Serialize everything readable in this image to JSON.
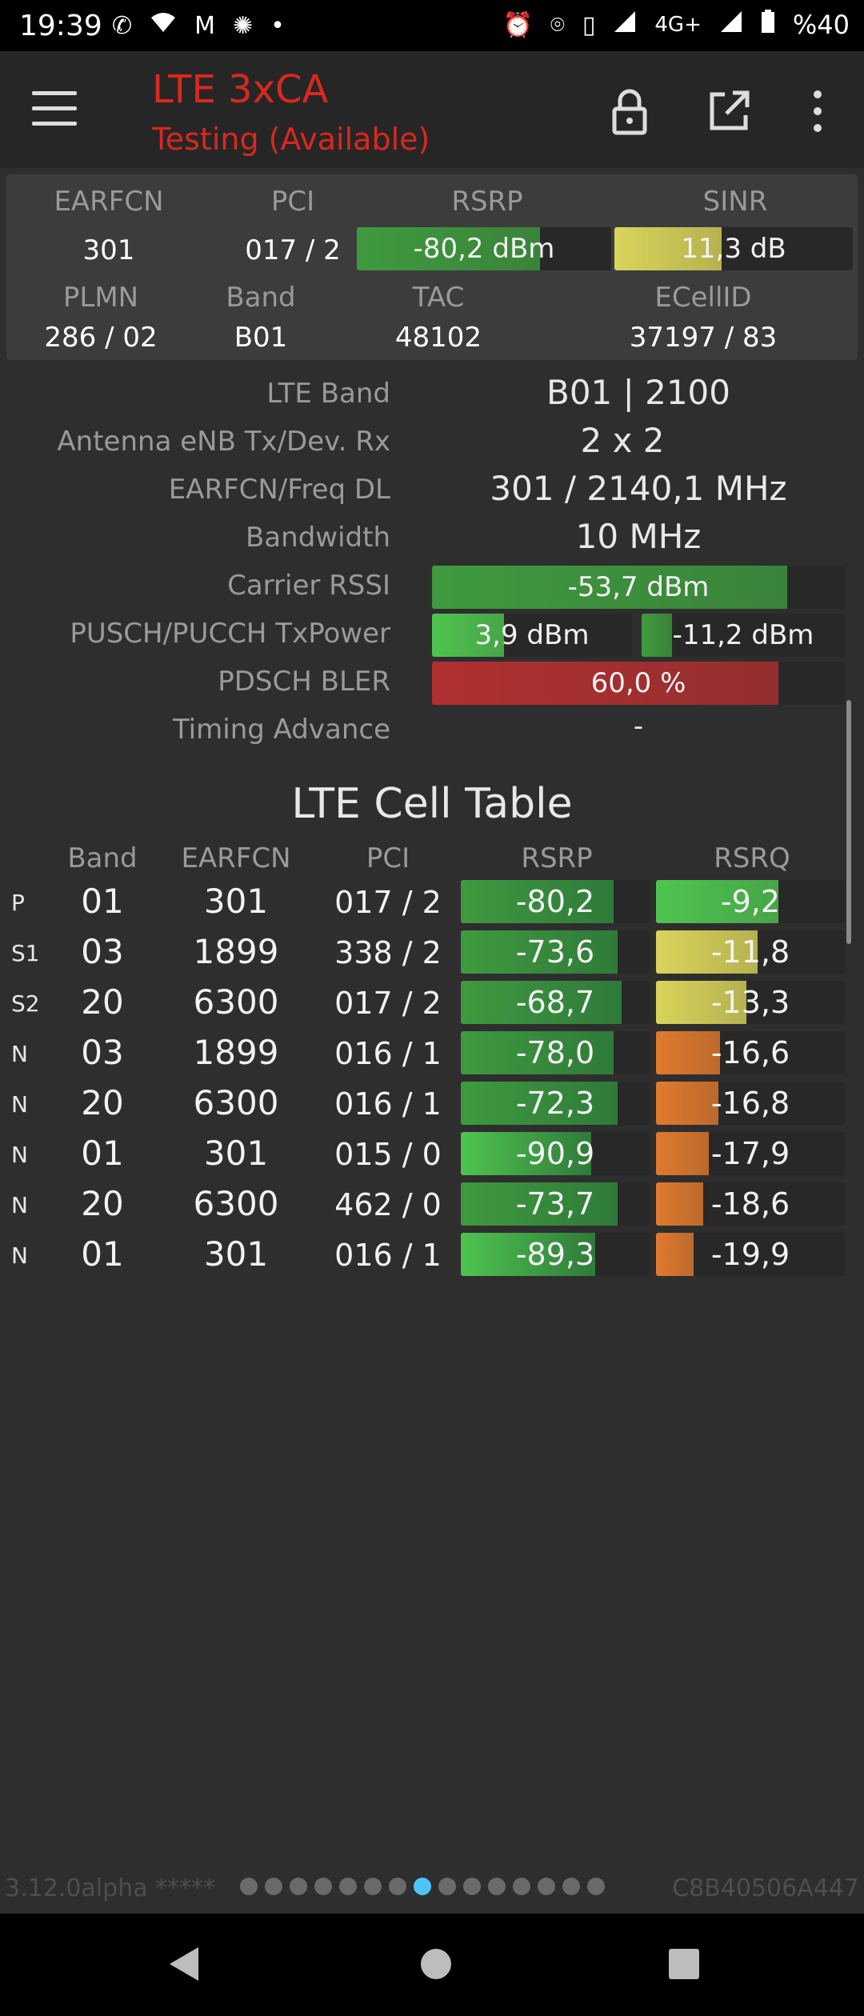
{
  "status_bar": {
    "time": "19:39",
    "left_icons": [
      "whatsapp-icon",
      "wifi-icon",
      "gmail-icon",
      "app-icon",
      "dot-icon"
    ],
    "right_icons": [
      "alarm-icon",
      "location-icon",
      "vibrate-icon",
      "signal-icon"
    ],
    "network": "4G+",
    "battery": "%40"
  },
  "app_bar": {
    "title": "LTE 3xCA",
    "subtitle": "Testing (Available)",
    "accent_color": "#d9281f"
  },
  "summary": {
    "headers1": [
      "EARFCN",
      "PCI",
      "RSRP",
      "SINR"
    ],
    "earfcn": "301",
    "pci": "017 / 2",
    "rsrp": {
      "text": "-80,2 dBm",
      "fill": 0.72,
      "color": "#3f9a3f"
    },
    "sinr": {
      "text": "11,3 dB",
      "fill": 0.45,
      "color": "#d9d45a"
    },
    "headers2": [
      "PLMN",
      "Band",
      "TAC",
      "ECellID"
    ],
    "plmn": "286 / 02",
    "band": "B01",
    "tac": "48102",
    "ecellid": "37197 / 83"
  },
  "details": {
    "lte_band_label": "LTE Band",
    "lte_band_value": "B01 | 2100",
    "antenna_label": "Antenna eNB Tx/Dev. Rx",
    "antenna_value": "2 x 2",
    "earfcn_freq_label": "EARFCN/Freq DL",
    "earfcn_freq_value": "301 / 2140,1 MHz",
    "bandwidth_label": "Bandwidth",
    "bandwidth_value": "10 MHz",
    "rssi_label": "Carrier RSSI",
    "rssi": {
      "text": "-53,7 dBm",
      "fill": 0.86,
      "color": "#3f9a3f"
    },
    "txpower_label": "PUSCH/PUCCH TxPower",
    "pusch": {
      "text": "3,9 dBm",
      "fill": 0.36,
      "color": "#4fc44f"
    },
    "pucch": {
      "text": "-11,2 dBm",
      "fill": 0.15,
      "color": "#3f9a3f"
    },
    "bler_label": "PDSCH BLER",
    "bler": {
      "text": "60,0 %",
      "fill": 0.84,
      "color": "#b03030"
    },
    "timing_label": "Timing Advance",
    "timing_value": "-"
  },
  "cell_table": {
    "title": "LTE Cell Table",
    "headers": [
      "Band",
      "EARFCN",
      "PCI",
      "RSRP",
      "RSRQ"
    ],
    "rows": [
      {
        "tag": "P",
        "band": "01",
        "earfcn": "301",
        "pci": "017 / 2",
        "rsrp": "-80,2",
        "rsrp_fill": 0.81,
        "rsrp_color": "#3f9a3f",
        "rsrq": "-9,2",
        "rsrq_fill": 0.65,
        "rsrq_color": "#4fc44f"
      },
      {
        "tag": "S1",
        "band": "03",
        "earfcn": "1899",
        "pci": "338 / 2",
        "rsrp": "-73,6",
        "rsrp_fill": 0.83,
        "rsrp_color": "#3f9a3f",
        "rsrq": "-11,8",
        "rsrq_fill": 0.54,
        "rsrq_color": "#d9d45a"
      },
      {
        "tag": "S2",
        "band": "20",
        "earfcn": "6300",
        "pci": "017 / 2",
        "rsrp": "-68,7",
        "rsrp_fill": 0.85,
        "rsrp_color": "#3f9a3f",
        "rsrq": "-13,3",
        "rsrq_fill": 0.48,
        "rsrq_color": "#d9d45a"
      },
      {
        "tag": "N",
        "band": "03",
        "earfcn": "1899",
        "pci": "016 / 1",
        "rsrp": "-78,0",
        "rsrp_fill": 0.81,
        "rsrp_color": "#3f9a3f",
        "rsrq": "-16,6",
        "rsrq_fill": 0.34,
        "rsrq_color": "#e07a2e"
      },
      {
        "tag": "N",
        "band": "20",
        "earfcn": "6300",
        "pci": "016 / 1",
        "rsrp": "-72,3",
        "rsrp_fill": 0.83,
        "rsrp_color": "#3f9a3f",
        "rsrq": "-16,8",
        "rsrq_fill": 0.33,
        "rsrq_color": "#e07a2e"
      },
      {
        "tag": "N",
        "band": "01",
        "earfcn": "301",
        "pci": "015 / 0",
        "rsrp": "-90,9",
        "rsrp_fill": 0.69,
        "rsrp_color": "#4fc44f",
        "rsrq": "-17,9",
        "rsrq_fill": 0.28,
        "rsrq_color": "#e07a2e"
      },
      {
        "tag": "N",
        "band": "20",
        "earfcn": "6300",
        "pci": "462 / 0",
        "rsrp": "-73,7",
        "rsrp_fill": 0.83,
        "rsrp_color": "#3f9a3f",
        "rsrq": "-18,6",
        "rsrq_fill": 0.25,
        "rsrq_color": "#e07a2e"
      },
      {
        "tag": "N",
        "band": "01",
        "earfcn": "301",
        "pci": "016 / 1",
        "rsrp": "-89,3",
        "rsrp_fill": 0.71,
        "rsrp_color": "#4fc44f",
        "rsrq": "-19,9",
        "rsrq_fill": 0.2,
        "rsrq_color": "#e07a2e"
      }
    ]
  },
  "footer": {
    "version": "3.12.0alpha *****",
    "device_id": "C8B40506A447",
    "page_count": 15,
    "active_page": 8
  },
  "nav_bar": {
    "icons": [
      "back-icon",
      "home-icon",
      "recent-apps-icon"
    ]
  }
}
